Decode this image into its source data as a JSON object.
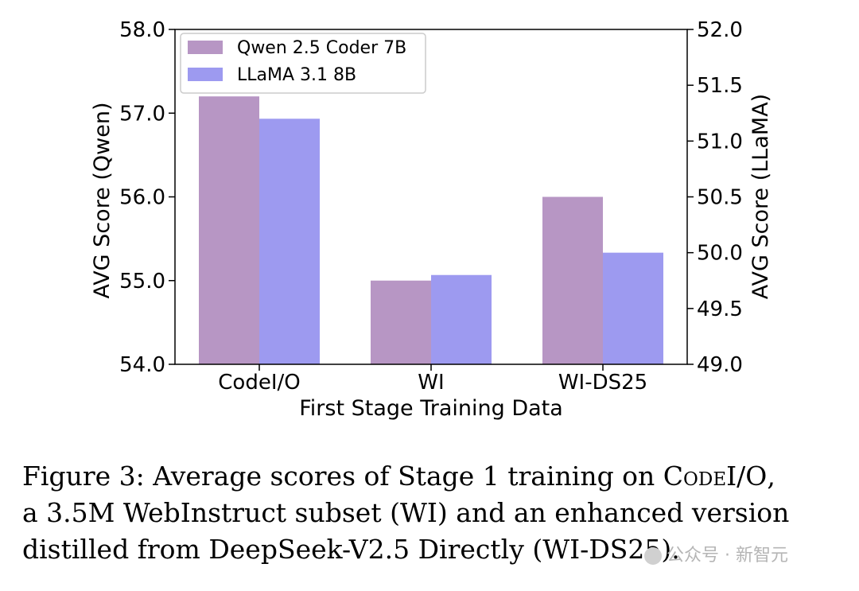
{
  "chart_data": {
    "type": "bar",
    "categories": [
      "CodeI/O",
      "WI",
      "WI-DS25"
    ],
    "series": [
      {
        "name": "Qwen 2.5 Coder 7B",
        "axis": "left",
        "color": "#b796c4",
        "values": [
          57.2,
          55.0,
          56.0
        ]
      },
      {
        "name": "LLaMA 3.1 8B",
        "axis": "right",
        "color": "#9d9af0",
        "values": [
          51.2,
          49.8,
          50.0
        ]
      }
    ],
    "xlabel": "First Stage Training Data",
    "ylabel_left": "AVG Score (Qwen)",
    "ylabel_right": "AVG Score (LLaMA)",
    "ylim_left": [
      54.0,
      58.0
    ],
    "ylim_right": [
      49.0,
      52.0
    ],
    "yticks_left": [
      "54.0",
      "55.0",
      "56.0",
      "57.0",
      "58.0"
    ],
    "yticks_right": [
      "49.0",
      "49.5",
      "50.0",
      "50.5",
      "51.0",
      "51.5",
      "52.0"
    ],
    "grid": false,
    "legend_position": "top-left"
  },
  "caption": {
    "line1_prefix": "Figure 3: Average scores of Stage 1 training on ",
    "line1_sc": "CodeI/O",
    "line1_suffix": ",",
    "line2": "a 3.5M WebInstruct subset (WI) and an enhanced version",
    "line3": "distilled from DeepSeek-V2.5 Directly (WI-DS25)."
  },
  "watermark": "公众号 · 新智元"
}
